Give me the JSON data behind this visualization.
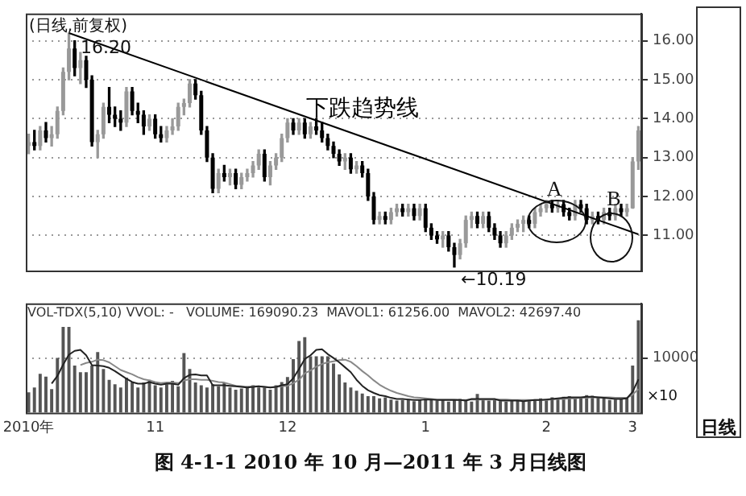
{
  "chart_data": [
    {
      "type": "candlestick",
      "title": "(日线,前复权)",
      "colors": [
        "#999999",
        "#000000",
        "#999999",
        "#000000",
        "#999999",
        "#999999",
        "#999999",
        "#999999",
        "#000000",
        "#999999",
        "#000000",
        "#000000",
        "#999999",
        "#999999",
        "#000000",
        "#000000",
        "#000000",
        "#999999",
        "#000000",
        "#000000",
        "#000000",
        "#999999",
        "#000000",
        "#000000",
        "#999999",
        "#999999",
        "#999999",
        "#999999",
        "#999999",
        "#000000",
        "#000000",
        "#000000",
        "#000000",
        "#999999",
        "#000000",
        "#999999",
        "#000000",
        "#999999",
        "#999999",
        "#999999",
        "#999999",
        "#000000",
        "#999999",
        "#999999",
        "#999999",
        "#999999",
        "#000000",
        "#999999",
        "#000000",
        "#999999",
        "#000000",
        "#000000",
        "#000000",
        "#000000",
        "#000000",
        "#999999",
        "#000000",
        "#999999",
        "#000000",
        "#000000",
        "#000000",
        "#999999",
        "#000000",
        "#999999",
        "#999999",
        "#000000",
        "#999999",
        "#000000",
        "#999999",
        "#000000",
        "#000000",
        "#000000",
        "#999999",
        "#000000",
        "#000000",
        "#999999",
        "#999999",
        "#999999",
        "#000000",
        "#999999",
        "#000000",
        "#000000",
        "#000000",
        "#999999",
        "#999999",
        "#999999",
        "#999999",
        "#000000",
        "#999999",
        "#999999",
        "#999999",
        "#000000",
        "#999999",
        "#000000",
        "#000000",
        "#999999",
        "#000000",
        "#000000",
        "#999999",
        "#000000",
        "#999999",
        "#000000",
        "#999999",
        "#000000",
        "#999999",
        "#999999",
        "#999999"
      ],
      "tick_labels": "y",
      "grid": "y",
      "ylim": [
        10.1,
        16.7
      ],
      "yticks": [
        {
          "value": 11,
          "label": "11.00"
        },
        {
          "value": 12,
          "label": "12.00"
        },
        {
          "value": 13,
          "label": "13.00"
        },
        {
          "value": 14,
          "label": "14.00"
        },
        {
          "value": 15,
          "label": "15.00"
        },
        {
          "value": 16,
          "label": "16.00"
        }
      ],
      "categories": [
        null,
        null,
        null,
        null,
        null,
        null,
        null,
        null,
        null,
        null,
        null,
        null,
        null,
        null,
        null,
        null,
        null,
        null,
        null,
        null,
        null,
        null,
        null,
        null,
        null,
        null,
        null,
        null,
        null,
        null,
        null,
        null,
        null,
        null,
        null,
        null,
        null,
        null,
        null,
        null,
        null,
        null,
        null,
        null,
        null,
        null,
        null,
        null,
        null,
        null,
        null,
        null,
        null,
        null,
        null,
        null,
        null,
        null,
        null,
        null,
        null,
        null,
        null,
        null,
        null,
        null,
        null,
        null,
        null,
        null,
        null,
        null,
        null,
        null,
        null,
        null,
        null,
        null,
        null,
        null,
        null,
        null,
        null,
        null,
        null,
        null,
        null,
        null,
        null,
        null,
        null,
        null,
        null,
        null,
        null,
        null,
        null,
        null,
        null,
        null,
        null,
        null,
        null,
        null,
        null,
        null,
        null
      ],
      "ohlc": [
        [
          13.3,
          13.6,
          13.1,
          13.4
        ],
        [
          13.4,
          13.7,
          13.2,
          13.3
        ],
        [
          13.3,
          13.8,
          13.2,
          13.7
        ],
        [
          13.7,
          13.9,
          13.4,
          13.5
        ],
        [
          13.5,
          13.8,
          13.3,
          13.6
        ],
        [
          13.6,
          14.3,
          13.5,
          14.2
        ],
        [
          14.2,
          15.3,
          14.1,
          15.2
        ],
        [
          15.2,
          16.2,
          15.0,
          15.8
        ],
        [
          15.8,
          16.0,
          15.1,
          15.3
        ],
        [
          15.3,
          15.7,
          14.9,
          15.5
        ],
        [
          15.5,
          15.6,
          14.8,
          15.0
        ],
        [
          15.0,
          15.1,
          13.3,
          13.4
        ],
        [
          13.4,
          13.7,
          13.0,
          13.6
        ],
        [
          13.6,
          14.4,
          13.5,
          14.3
        ],
        [
          14.3,
          14.8,
          13.9,
          14.1
        ],
        [
          14.1,
          14.3,
          13.8,
          14.0
        ],
        [
          14.0,
          14.2,
          13.7,
          13.9
        ],
        [
          13.9,
          14.8,
          13.8,
          14.7
        ],
        [
          14.7,
          14.8,
          14.1,
          14.2
        ],
        [
          14.2,
          14.4,
          13.9,
          14.1
        ],
        [
          14.1,
          14.2,
          13.6,
          13.8
        ],
        [
          13.8,
          14.1,
          13.7,
          14.0
        ],
        [
          14.0,
          14.1,
          13.5,
          13.6
        ],
        [
          13.6,
          13.8,
          13.4,
          13.5
        ],
        [
          13.5,
          13.8,
          13.4,
          13.7
        ],
        [
          13.7,
          14.0,
          13.6,
          13.8
        ],
        [
          13.8,
          14.4,
          13.7,
          14.3
        ],
        [
          14.3,
          14.5,
          14.1,
          14.4
        ],
        [
          14.4,
          15.0,
          14.3,
          14.9
        ],
        [
          14.9,
          15.0,
          14.5,
          14.6
        ],
        [
          14.6,
          14.7,
          13.6,
          13.7
        ],
        [
          13.7,
          13.8,
          12.9,
          13.0
        ],
        [
          13.0,
          13.1,
          12.1,
          12.2
        ],
        [
          12.2,
          12.7,
          12.1,
          12.6
        ],
        [
          12.6,
          12.8,
          12.4,
          12.5
        ],
        [
          12.5,
          12.7,
          12.3,
          12.6
        ],
        [
          12.6,
          12.7,
          12.2,
          12.3
        ],
        [
          12.3,
          12.6,
          12.2,
          12.5
        ],
        [
          12.5,
          12.7,
          12.4,
          12.6
        ],
        [
          12.6,
          12.9,
          12.5,
          12.8
        ],
        [
          12.8,
          13.2,
          12.7,
          13.1
        ],
        [
          13.1,
          13.2,
          12.4,
          12.5
        ],
        [
          12.5,
          12.9,
          12.3,
          12.8
        ],
        [
          12.8,
          13.1,
          12.7,
          13.0
        ],
        [
          13.0,
          13.6,
          12.9,
          13.5
        ],
        [
          13.5,
          14.0,
          13.4,
          13.9
        ],
        [
          13.9,
          14.0,
          13.6,
          13.7
        ],
        [
          13.7,
          14.0,
          13.6,
          13.9
        ],
        [
          13.9,
          14.0,
          13.5,
          13.6
        ],
        [
          13.6,
          13.9,
          13.5,
          13.8
        ],
        [
          13.8,
          14.0,
          13.6,
          13.7
        ],
        [
          13.7,
          13.9,
          13.4,
          13.5
        ],
        [
          13.5,
          13.6,
          13.2,
          13.3
        ],
        [
          13.3,
          13.4,
          13.0,
          13.1
        ],
        [
          13.1,
          13.2,
          12.8,
          12.9
        ],
        [
          12.9,
          13.1,
          12.7,
          13.0
        ],
        [
          13.0,
          13.1,
          12.6,
          12.7
        ],
        [
          12.7,
          12.9,
          12.6,
          12.8
        ],
        [
          12.8,
          12.9,
          12.5,
          12.6
        ],
        [
          12.6,
          12.7,
          11.9,
          12.0
        ],
        [
          12.0,
          12.1,
          11.3,
          11.4
        ],
        [
          11.4,
          11.6,
          11.3,
          11.5
        ],
        [
          11.5,
          11.6,
          11.3,
          11.4
        ],
        [
          11.4,
          11.7,
          11.3,
          11.6
        ],
        [
          11.6,
          11.8,
          11.5,
          11.7
        ],
        [
          11.7,
          11.8,
          11.5,
          11.6
        ],
        [
          11.6,
          11.8,
          11.5,
          11.7
        ],
        [
          11.7,
          11.8,
          11.4,
          11.5
        ],
        [
          11.5,
          11.8,
          11.4,
          11.7
        ],
        [
          11.7,
          11.8,
          11.1,
          11.2
        ],
        [
          11.2,
          11.3,
          10.9,
          11.0
        ],
        [
          11.0,
          11.1,
          10.8,
          10.9
        ],
        [
          10.9,
          11.1,
          10.7,
          11.0
        ],
        [
          11.0,
          11.1,
          10.6,
          10.7
        ],
        [
          10.7,
          10.8,
          10.19,
          10.5
        ],
        [
          10.5,
          10.9,
          10.4,
          10.8
        ],
        [
          10.8,
          11.5,
          10.7,
          11.4
        ],
        [
          11.4,
          11.6,
          11.2,
          11.5
        ],
        [
          11.5,
          11.6,
          11.2,
          11.3
        ],
        [
          11.3,
          11.6,
          11.2,
          11.5
        ],
        [
          11.5,
          11.6,
          11.1,
          11.2
        ],
        [
          11.2,
          11.3,
          10.9,
          11.0
        ],
        [
          11.0,
          11.1,
          10.7,
          10.8
        ],
        [
          10.8,
          11.1,
          10.7,
          11.0
        ],
        [
          11.0,
          11.3,
          10.9,
          11.2
        ],
        [
          11.2,
          11.4,
          11.1,
          11.3
        ],
        [
          11.3,
          11.5,
          11.1,
          11.4
        ],
        [
          11.4,
          11.5,
          11.2,
          11.3
        ],
        [
          11.3,
          11.7,
          11.2,
          11.6
        ],
        [
          11.6,
          11.8,
          11.5,
          11.7
        ],
        [
          11.7,
          11.9,
          11.6,
          11.8
        ],
        [
          11.8,
          11.9,
          11.6,
          11.7
        ],
        [
          11.7,
          11.9,
          11.6,
          11.8
        ],
        [
          11.8,
          11.9,
          11.5,
          11.6
        ],
        [
          11.6,
          11.7,
          11.4,
          11.5
        ],
        [
          11.5,
          11.9,
          11.4,
          11.8
        ],
        [
          11.8,
          11.9,
          11.6,
          11.7
        ],
        [
          11.7,
          11.8,
          11.3,
          11.4
        ],
        [
          11.4,
          11.6,
          11.3,
          11.5
        ],
        [
          11.5,
          11.6,
          11.3,
          11.4
        ],
        [
          11.4,
          11.7,
          11.3,
          11.6
        ],
        [
          11.6,
          11.7,
          11.4,
          11.5
        ],
        [
          11.5,
          11.8,
          11.4,
          11.7
        ],
        [
          11.7,
          11.8,
          11.5,
          11.6
        ],
        [
          11.6,
          11.8,
          11.5,
          11.7
        ],
        [
          11.7,
          13.0,
          11.7,
          12.9
        ],
        [
          12.9,
          13.8,
          12.7,
          13.7
        ]
      ],
      "series": [
        {
          "type": "line",
          "name": "下跌趋势线",
          "color": "#000000",
          "values": [
            null,
            null,
            null,
            null,
            null,
            null,
            null,
            16.2,
            null,
            null,
            null,
            null,
            null,
            null,
            null,
            null,
            null,
            null,
            null,
            null,
            null,
            null,
            null,
            null,
            null,
            null,
            null,
            null,
            null,
            null,
            null,
            null,
            null,
            null,
            null,
            null,
            null,
            null,
            null,
            null,
            null,
            null,
            null,
            null,
            null,
            null,
            null,
            null,
            null,
            null,
            null,
            null,
            null,
            null,
            null,
            null,
            null,
            null,
            null,
            null,
            null,
            null,
            null,
            null,
            null,
            null,
            null,
            null,
            null,
            null,
            null,
            null,
            null,
            null,
            null,
            null,
            null,
            null,
            null,
            null,
            null,
            null,
            null,
            null,
            null,
            null,
            null,
            null,
            null,
            null,
            null,
            null,
            null,
            null,
            null,
            null,
            null,
            null,
            null,
            null,
            null,
            null,
            null,
            null,
            null,
            null,
            11.03
          ]
        }
      ],
      "annotations": [
        "16.20",
        "←10.19",
        "A",
        "B"
      ]
    },
    {
      "type": "bar",
      "subtitle": "VOL-TDX(5,10) VVOL: -   VOLUME: 169090.23  MAVOL1: 61256.00  MAVOL2: 42697.40",
      "grid": "y",
      "ylim": [
        0,
        20000
      ],
      "yticks": [
        10000
      ],
      "categories": [
        "2010年",
        null,
        null,
        null,
        null,
        null,
        null,
        null,
        null,
        null,
        null,
        null,
        null,
        null,
        null,
        null,
        null,
        null,
        null,
        null,
        null,
        null,
        "11",
        null,
        null,
        null,
        null,
        null,
        null,
        null,
        null,
        null,
        null,
        null,
        null,
        null,
        null,
        null,
        null,
        null,
        null,
        null,
        null,
        null,
        null,
        "12",
        null,
        null,
        null,
        null,
        null,
        null,
        null,
        null,
        null,
        null,
        null,
        null,
        null,
        null,
        null,
        null,
        null,
        null,
        null,
        null,
        null,
        null,
        null,
        "1",
        null,
        null,
        null,
        null,
        null,
        null,
        null,
        null,
        null,
        null,
        null,
        null,
        null,
        null,
        null,
        null,
        null,
        null,
        null,
        null,
        "2",
        null,
        null,
        null,
        null,
        null,
        null,
        null,
        null,
        null,
        null,
        null,
        null,
        null,
        null,
        "3",
        null
      ],
      "series": [
        {
          "type": "bar",
          "color": "#555555",
          "values": [
            3700,
            4600,
            7100,
            6600,
            4300,
            10000,
            15700,
            15700,
            8600,
            7400,
            7400,
            8600,
            11100,
            8000,
            6000,
            5200,
            4600,
            6400,
            5600,
            4600,
            5500,
            6000,
            5000,
            4600,
            5200,
            5800,
            4800,
            10900,
            8000,
            5500,
            5000,
            4600,
            5200,
            4800,
            5500,
            4600,
            4200,
            4400,
            4800,
            5000,
            4600,
            4600,
            4200,
            5000,
            5600,
            6500,
            9800,
            13100,
            13800,
            10300,
            10300,
            10300,
            10300,
            9000,
            7000,
            5500,
            4600,
            4000,
            3500,
            3000,
            3000,
            2600,
            2800,
            2400,
            2200,
            2300,
            2500,
            2100,
            2400,
            2600,
            2300,
            2200,
            2400,
            2000,
            2300,
            2500,
            2200,
            2000,
            3400,
            2400,
            2200,
            2300,
            2100,
            2000,
            2200,
            2400,
            2000,
            2100,
            2300,
            2600,
            2400,
            2800,
            2500,
            2900,
            3000,
            2700,
            2600,
            3200,
            3100,
            2800,
            2600,
            2300,
            2400,
            2700,
            2800,
            8600,
            16900
          ]
        },
        {
          "type": "line",
          "color": "#222222",
          "values": [
            null,
            null,
            null,
            null,
            5300,
            6700,
            8800,
            10600,
            11300,
            11500,
            10500,
            8700,
            8600,
            8500,
            8200,
            7600,
            6900,
            6200,
            5600,
            5300,
            5300,
            5600,
            5300,
            5100,
            5300,
            5300,
            5100,
            6300,
            6900,
            7000,
            6800,
            6800,
            5000,
            5000,
            5000,
            4900,
            4800,
            4700,
            4600,
            4700,
            4800,
            4700,
            4600,
            4700,
            5000,
            5200,
            6300,
            8000,
            9800,
            10500,
            11500,
            11600,
            10700,
            10000,
            9200,
            8300,
            7400,
            6000,
            4900,
            4100,
            3600,
            3200,
            3000,
            2700,
            2500,
            2500,
            2400,
            2300,
            2300,
            2400,
            2400,
            2300,
            2300,
            2300,
            2300,
            2300,
            2200,
            2500,
            2500,
            2500,
            2500,
            2500,
            2200,
            2200,
            2200,
            2200,
            2100,
            2200,
            2300,
            2300,
            2400,
            2500,
            2600,
            2700,
            2800,
            2800,
            2800,
            2900,
            2900,
            2800,
            2700,
            2600,
            2500,
            2500,
            2600,
            3800,
            6100
          ]
        },
        {
          "type": "line",
          "color": "#888888",
          "values": [
            null,
            null,
            null,
            null,
            null,
            null,
            null,
            null,
            null,
            8700,
            9100,
            9300,
            9700,
            9600,
            9200,
            8500,
            7800,
            7400,
            7000,
            6500,
            6100,
            5900,
            5600,
            5400,
            5500,
            5500,
            5400,
            5900,
            6100,
            6100,
            6000,
            6000,
            5800,
            5600,
            5500,
            5200,
            4900,
            4800,
            4700,
            4800,
            4800,
            4700,
            4600,
            4700,
            4800,
            4900,
            5400,
            6000,
            7200,
            7700,
            8400,
            8900,
            9200,
            9400,
            9600,
            9700,
            9300,
            8500,
            7600,
            6800,
            5900,
            5100,
            4500,
            4000,
            3600,
            3300,
            3000,
            2800,
            2700,
            2600,
            2500,
            2400,
            2400,
            2400,
            2400,
            2300,
            2300,
            2400,
            2400,
            2400,
            2400,
            2400,
            2400,
            2400,
            2300,
            2300,
            2300,
            2300,
            2300,
            2300,
            2300,
            2400,
            2500,
            2500,
            2600,
            2600,
            2700,
            2700,
            2800,
            2800,
            2800,
            2800,
            2700,
            2700,
            2700,
            3300,
            4300
          ]
        }
      ],
      "annotations": [
        "×10",
        "日线",
        "图 4-1-1 2010 年 10 月—2011 年 3 月日线图"
      ]
    }
  ]
}
